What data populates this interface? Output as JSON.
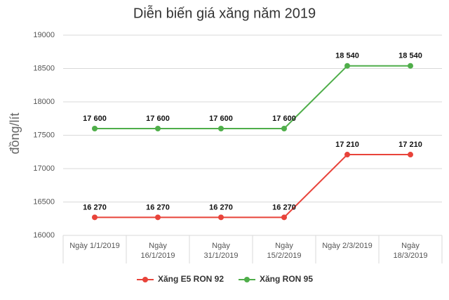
{
  "chart_data": {
    "type": "line",
    "title": "Diễn biến giá xăng năm 2019",
    "y_label": "đồng/lít",
    "categories": [
      "Ngày 1/1/2019",
      "Ngày\n16/1/2019",
      "Ngày\n31/1/2019",
      "Ngày\n15/2/2019",
      "Ngày 2/3/2019",
      "Ngày\n18/3/2019"
    ],
    "series": [
      {
        "name": "Xăng E5 RON 92",
        "color": "#e8433a",
        "values": [
          16270,
          16270,
          16270,
          16270,
          17210,
          17210
        ],
        "value_labels": [
          "16 270",
          "16 270",
          "16 270",
          "16 270",
          "17 210",
          "17 210"
        ]
      },
      {
        "name": "Xăng RON 95",
        "color": "#4fae4a",
        "values": [
          17600,
          17600,
          17600,
          17600,
          18540,
          18540
        ],
        "value_labels": [
          "17 600",
          "17 600",
          "17 600",
          "17 600",
          "18 540",
          "18 540"
        ]
      }
    ],
    "ylim": [
      16000,
      19000
    ],
    "yticks": [
      16000,
      16500,
      17000,
      17500,
      18000,
      18500,
      19000
    ],
    "grid": true
  }
}
